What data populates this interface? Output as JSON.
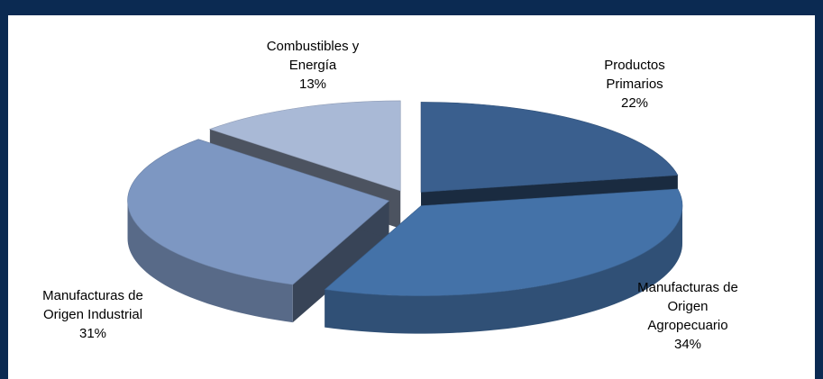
{
  "colors": {
    "frame": "#0b2a52",
    "productos": "#3a5f8e",
    "moa": "#4472a8",
    "moi": "#7d97c2",
    "combustibles": "#a9b9d6"
  },
  "chart_data": {
    "type": "pie",
    "style": "3d-exploded",
    "title": "",
    "slices": [
      {
        "label": "Productos Primarios",
        "label_lines": [
          "Productos",
          "Primarios"
        ],
        "value": 22,
        "value_text": "22%"
      },
      {
        "label": "Manufacturas de Origen Agropecuario",
        "label_lines": [
          "Manufacturas de",
          "Origen",
          "Agropecuario"
        ],
        "value": 34,
        "value_text": "34%"
      },
      {
        "label": "Manufacturas de Origen Industrial",
        "label_lines": [
          "Manufacturas de",
          "Origen Industrial"
        ],
        "value": 31,
        "value_text": "31%"
      },
      {
        "label": "Combustibles y Energía",
        "label_lines": [
          "Combustibles y",
          "Energía"
        ],
        "value": 13,
        "value_text": "13%"
      }
    ]
  }
}
